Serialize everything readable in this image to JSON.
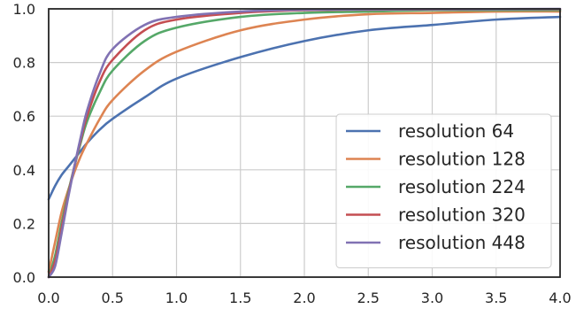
{
  "chart_data": {
    "type": "line",
    "title": "",
    "xlabel": "",
    "ylabel": "",
    "xlim": [
      0.0,
      4.0
    ],
    "ylim": [
      0.0,
      1.0
    ],
    "grid": true,
    "legend_position": "lower-right",
    "x_ticks": [
      "0.0",
      "0.5",
      "1.0",
      "1.5",
      "2.0",
      "2.5",
      "3.0",
      "3.5",
      "4.0"
    ],
    "y_ticks": [
      "0.0",
      "0.2",
      "0.4",
      "0.6",
      "0.8",
      "1.0"
    ],
    "x": [
      0.0,
      0.05,
      0.1,
      0.15,
      0.2,
      0.25,
      0.3,
      0.4,
      0.5,
      0.75,
      1.0,
      1.5,
      2.0,
      2.5,
      3.0,
      3.5,
      4.0
    ],
    "series": [
      {
        "name": "resolution 64",
        "color": "#4c72b0",
        "values": [
          0.29,
          0.34,
          0.38,
          0.41,
          0.44,
          0.47,
          0.5,
          0.55,
          0.59,
          0.67,
          0.74,
          0.82,
          0.88,
          0.92,
          0.94,
          0.96,
          0.97
        ]
      },
      {
        "name": "resolution 128",
        "color": "#dd8452",
        "values": [
          0.02,
          0.13,
          0.24,
          0.32,
          0.39,
          0.45,
          0.5,
          0.59,
          0.66,
          0.77,
          0.84,
          0.92,
          0.96,
          0.98,
          0.985,
          0.99,
          0.99
        ]
      },
      {
        "name": "resolution 224",
        "color": "#55a868",
        "values": [
          0.0,
          0.08,
          0.2,
          0.31,
          0.41,
          0.5,
          0.58,
          0.69,
          0.77,
          0.88,
          0.93,
          0.97,
          0.985,
          0.99,
          0.995,
          0.995,
          0.995
        ]
      },
      {
        "name": "resolution 320",
        "color": "#c44e52",
        "values": [
          0.0,
          0.06,
          0.18,
          0.3,
          0.41,
          0.51,
          0.6,
          0.73,
          0.81,
          0.92,
          0.96,
          0.985,
          0.995,
          0.997,
          0.998,
          0.999,
          0.999
        ]
      },
      {
        "name": "resolution 448",
        "color": "#8172b3",
        "values": [
          0.0,
          0.04,
          0.16,
          0.29,
          0.41,
          0.52,
          0.62,
          0.76,
          0.85,
          0.94,
          0.97,
          0.99,
          0.997,
          0.998,
          0.999,
          0.999,
          1.0
        ]
      }
    ]
  }
}
